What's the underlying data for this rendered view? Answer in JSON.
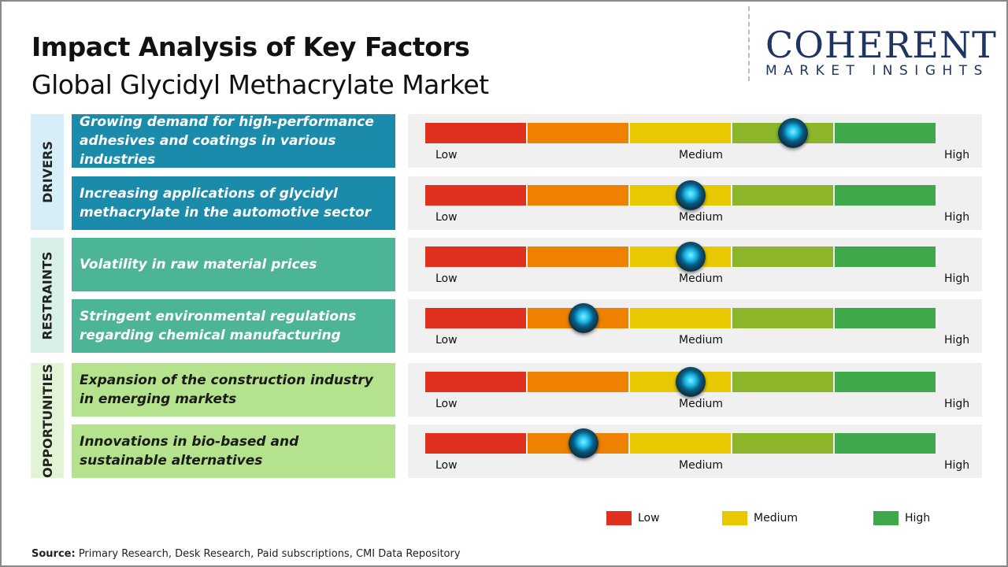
{
  "title": "Impact Analysis of Key Factors",
  "subtitle": "Global Glycidyl Methacrylate Market",
  "logo": {
    "main": "COHERENT",
    "sub": "MARKET INSIGHTS"
  },
  "colors": {
    "low": "#e0301e",
    "low_mid": "#ee8200",
    "medium": "#e8c800",
    "mid_high": "#8db52a",
    "high": "#3fa84a",
    "knob": "#18b6e8"
  },
  "chart_data": {
    "type": "gauge-bars",
    "scale_labels": [
      "Low",
      "Medium",
      "High"
    ],
    "segments": [
      "Low",
      "Low-Medium",
      "Medium",
      "Medium-High",
      "High"
    ],
    "categories": [
      {
        "name": "DRIVERS",
        "box_color": "#d6eef8",
        "factor_color": "#1a8bab",
        "text_color": "#ffffff",
        "factors": [
          {
            "text": "Growing demand for high-performance adhesives and coatings in various industries",
            "impact": 0.72
          },
          {
            "text": "Increasing applications of glycidyl methacrylate in the automotive sector",
            "impact": 0.52
          }
        ]
      },
      {
        "name": "RESTRAINTS",
        "box_color": "#d8f0e8",
        "factor_color": "#4db597",
        "text_color": "#ffffff",
        "factors": [
          {
            "text": "Volatility in raw material prices",
            "impact": 0.52
          },
          {
            "text": "Stringent environmental regulations regarding chemical manufacturing",
            "impact": 0.31
          }
        ]
      },
      {
        "name": "OPPORTUNITIES",
        "box_color": "#e3f4d6",
        "factor_color": "#b5e28c",
        "text_color": "#1a1a1a",
        "factors": [
          {
            "text": "Expansion of the construction industry in emerging markets",
            "impact": 0.52
          },
          {
            "text": "Innovations in bio-based and sustainable alternatives",
            "impact": 0.31
          }
        ]
      }
    ],
    "legend": [
      {
        "label": "Low",
        "color": "#e0301e"
      },
      {
        "label": "Medium",
        "color": "#e8c800"
      },
      {
        "label": "High",
        "color": "#3fa84a"
      }
    ]
  },
  "source": {
    "label": "Source:",
    "text": " Primary Research, Desk Research, Paid subscriptions, CMI Data Repository"
  }
}
